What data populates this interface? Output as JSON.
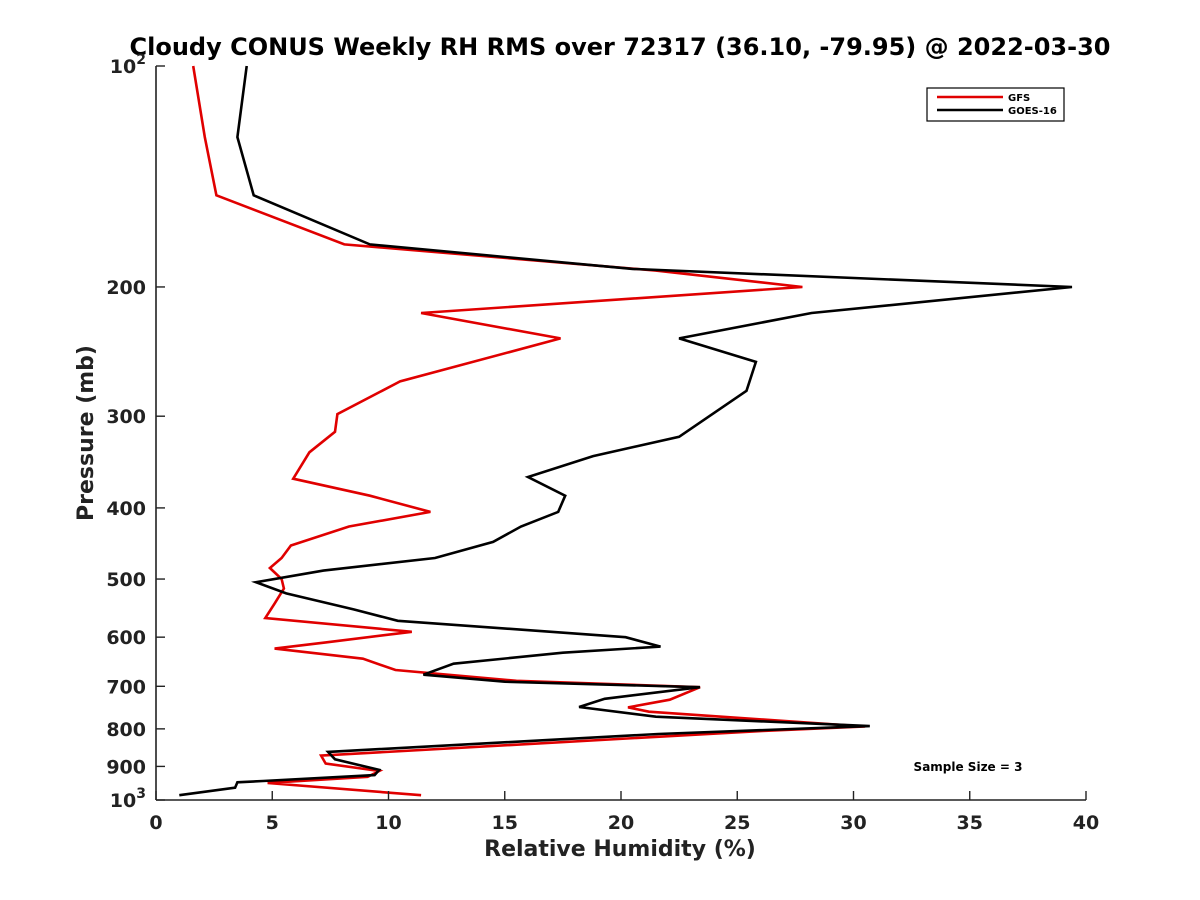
{
  "chart_data": {
    "type": "line",
    "title": "Cloudy CONUS Weekly RH RMS over 72317 (36.10, -79.95) @ 2022-03-30",
    "xlabel": "Relative Humidity (%)",
    "ylabel": "Pressure (mb)",
    "xlim": [
      0,
      40
    ],
    "ylim": [
      100,
      1000
    ],
    "y_scale": "log",
    "y_reversed": true,
    "x_ticks": [
      0,
      5,
      10,
      15,
      20,
      25,
      30,
      35,
      40
    ],
    "y_ticks": [
      {
        "value": 100,
        "base": "10",
        "exp": "2"
      },
      {
        "value": 200,
        "label": "200"
      },
      {
        "value": 300,
        "label": "300"
      },
      {
        "value": 400,
        "label": "400"
      },
      {
        "value": 500,
        "label": "500"
      },
      {
        "value": 600,
        "label": "600"
      },
      {
        "value": 700,
        "label": "700"
      },
      {
        "value": 800,
        "label": "800"
      },
      {
        "value": 900,
        "label": "900"
      },
      {
        "value": 1000,
        "base": "10",
        "exp": "3"
      }
    ],
    "legend_position": "top-right",
    "annotation": "Sample Size = 3",
    "series": [
      {
        "name": "GFS",
        "color": "#e00000",
        "points": [
          [
            1.6,
            100
          ],
          [
            2.1,
            125
          ],
          [
            2.6,
            150
          ],
          [
            8.1,
            175
          ],
          [
            21.5,
            190
          ],
          [
            27.8,
            200
          ],
          [
            11.4,
            217
          ],
          [
            17.4,
            235
          ],
          [
            10.5,
            269
          ],
          [
            7.8,
            298
          ],
          [
            7.7,
            315
          ],
          [
            6.6,
            336
          ],
          [
            5.9,
            365
          ],
          [
            9.2,
            385
          ],
          [
            11.8,
            405
          ],
          [
            8.3,
            424
          ],
          [
            5.8,
            450
          ],
          [
            5.4,
            468
          ],
          [
            4.9,
            483
          ],
          [
            5.4,
            500
          ],
          [
            5.5,
            515
          ],
          [
            5.1,
            540
          ],
          [
            4.7,
            565
          ],
          [
            11.0,
            590
          ],
          [
            7.3,
            610
          ],
          [
            5.1,
            622
          ],
          [
            8.9,
            642
          ],
          [
            10.3,
            665
          ],
          [
            15.5,
            688
          ],
          [
            23.4,
            702
          ],
          [
            22.1,
            730
          ],
          [
            20.3,
            748
          ],
          [
            21.2,
            758
          ],
          [
            30.5,
            794
          ],
          [
            26.1,
            805
          ],
          [
            7.1,
            870
          ],
          [
            7.3,
            892
          ],
          [
            9.6,
            913
          ],
          [
            9.1,
            930
          ],
          [
            4.8,
            948
          ],
          [
            11.4,
            985
          ]
        ]
      },
      {
        "name": "GOES-16",
        "color": "#000000",
        "points": [
          [
            3.9,
            100
          ],
          [
            3.5,
            125
          ],
          [
            4.2,
            150
          ],
          [
            9.2,
            175
          ],
          [
            20.5,
            189
          ],
          [
            39.4,
            200
          ],
          [
            28.2,
            217
          ],
          [
            22.5,
            235
          ],
          [
            25.8,
            253
          ],
          [
            25.4,
            277
          ],
          [
            22.5,
            320
          ],
          [
            18.8,
            340
          ],
          [
            16.0,
            363
          ],
          [
            17.6,
            385
          ],
          [
            17.3,
            405
          ],
          [
            15.7,
            424
          ],
          [
            14.5,
            445
          ],
          [
            12.0,
            468
          ],
          [
            7.2,
            487
          ],
          [
            4.3,
            505
          ],
          [
            5.6,
            523
          ],
          [
            8.5,
            550
          ],
          [
            10.4,
            570
          ],
          [
            20.2,
            600
          ],
          [
            21.7,
            618
          ],
          [
            17.5,
            630
          ],
          [
            12.8,
            652
          ],
          [
            11.5,
            675
          ],
          [
            15.0,
            690
          ],
          [
            23.4,
            702
          ],
          [
            19.3,
            728
          ],
          [
            18.2,
            747
          ],
          [
            21.5,
            770
          ],
          [
            30.7,
            793
          ],
          [
            21.6,
            813
          ],
          [
            7.4,
            860
          ],
          [
            7.7,
            880
          ],
          [
            9.6,
            910
          ],
          [
            9.4,
            925
          ],
          [
            4.6,
            942
          ],
          [
            3.5,
            946
          ],
          [
            3.4,
            962
          ],
          [
            1.0,
            985
          ]
        ]
      }
    ]
  }
}
